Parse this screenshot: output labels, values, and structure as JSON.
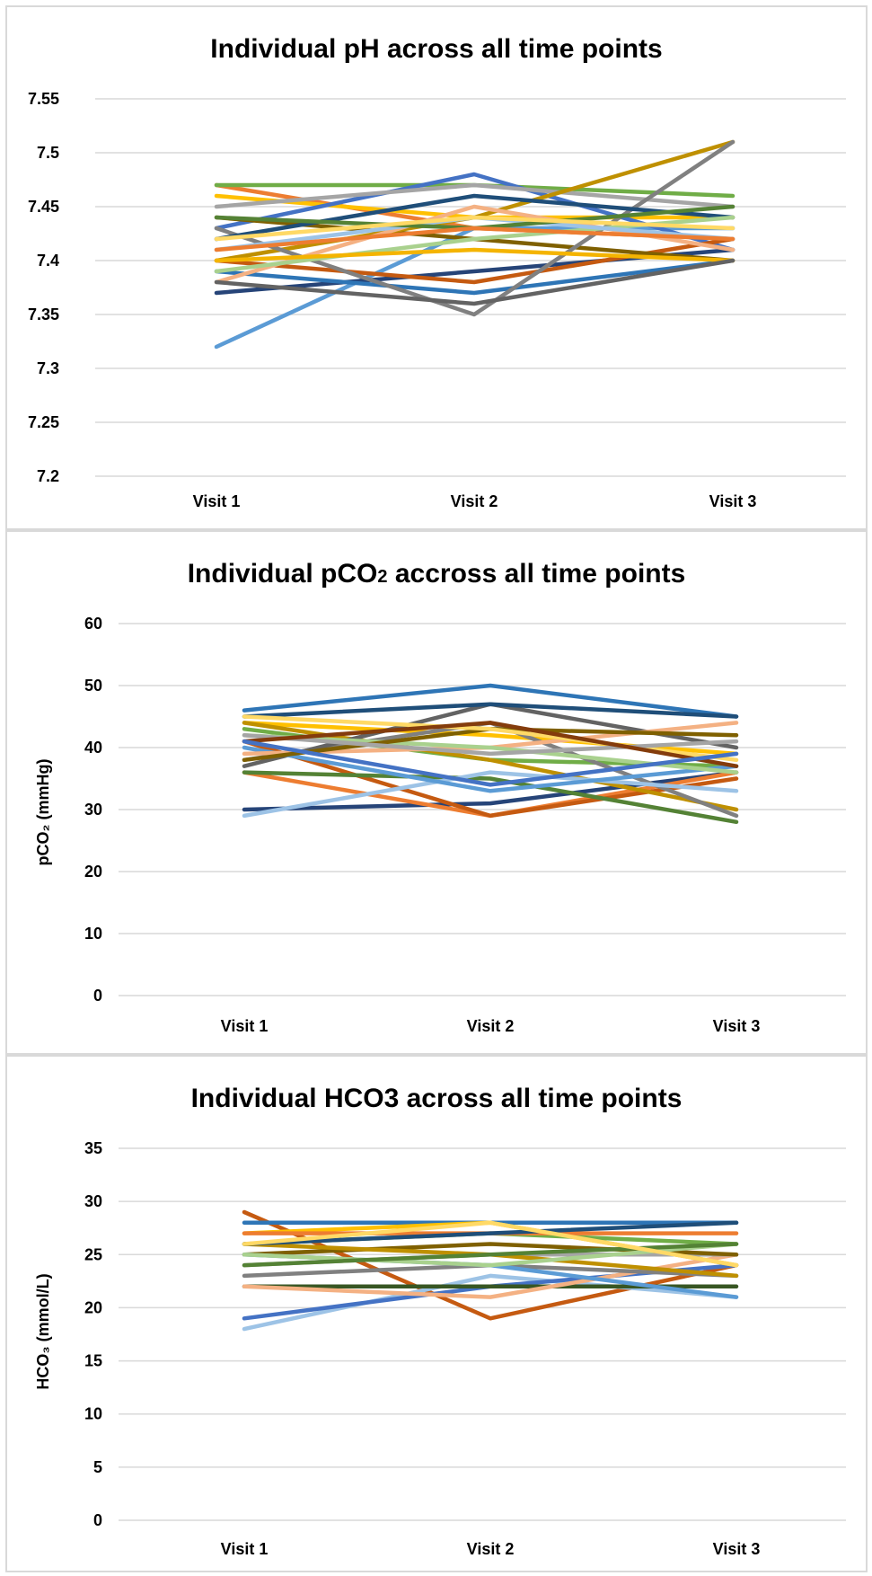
{
  "chart_data": [
    {
      "type": "line",
      "title": "Individual pH across all time points",
      "xlabel": "",
      "ylabel": "",
      "categories": [
        "Visit 1",
        "Visit 2",
        "Visit 3"
      ],
      "ylim": [
        7.2,
        7.55
      ],
      "yticks": [
        "7.2",
        "7.25",
        "7.3",
        "7.35",
        "7.4",
        "7.45",
        "7.5",
        "7.55"
      ],
      "ytick_values": [
        7.2,
        7.25,
        7.3,
        7.35,
        7.4,
        7.45,
        7.5,
        7.55
      ],
      "grid": true,
      "legend": "none",
      "series": [
        {
          "color": "#5B9BD5",
          "values": [
            7.32,
            7.43,
            7.43
          ]
        },
        {
          "color": "#264478",
          "values": [
            7.37,
            7.39,
            7.41
          ]
        },
        {
          "color": "#ED7D31",
          "values": [
            7.47,
            7.43,
            7.42
          ]
        },
        {
          "color": "#70AD47",
          "values": [
            7.47,
            7.47,
            7.46
          ]
        },
        {
          "color": "#FFC000",
          "values": [
            7.46,
            7.44,
            7.44
          ]
        },
        {
          "color": "#4472C4",
          "values": [
            7.43,
            7.48,
            7.41
          ]
        },
        {
          "color": "#A5A5A5",
          "values": [
            7.45,
            7.47,
            7.45
          ]
        },
        {
          "color": "#C55A11",
          "values": [
            7.4,
            7.38,
            7.42
          ]
        },
        {
          "color": "#2E75B6",
          "values": [
            7.39,
            7.37,
            7.4
          ]
        },
        {
          "color": "#7F6000",
          "values": [
            7.44,
            7.42,
            7.4
          ]
        },
        {
          "color": "#BF9000",
          "values": [
            7.4,
            7.44,
            7.51
          ]
        },
        {
          "color": "#808080",
          "values": [
            7.43,
            7.35,
            7.51
          ]
        },
        {
          "color": "#1F4E79",
          "values": [
            7.42,
            7.46,
            7.44
          ]
        },
        {
          "color": "#F4B183",
          "values": [
            7.38,
            7.45,
            7.41
          ]
        },
        {
          "color": "#A9D18E",
          "values": [
            7.39,
            7.42,
            7.44
          ]
        },
        {
          "color": "#9DC3E6",
          "values": [
            7.41,
            7.44,
            7.42
          ]
        },
        {
          "color": "#548235",
          "values": [
            7.44,
            7.43,
            7.45
          ]
        },
        {
          "color": "#F4B400",
          "values": [
            7.4,
            7.41,
            7.4
          ]
        },
        {
          "color": "#636363",
          "values": [
            7.38,
            7.36,
            7.4
          ]
        },
        {
          "color": "#ED7D31",
          "values": [
            7.41,
            7.43,
            7.42
          ]
        },
        {
          "color": "#FFD966",
          "values": [
            7.42,
            7.44,
            7.43
          ]
        }
      ]
    },
    {
      "type": "line",
      "title": "Individual pCO2 accross all time points",
      "title_main": "Individual pCO",
      "title_sub": "2",
      "title_tail": " accross all time points",
      "xlabel": "",
      "ylabel": "pCO₂ (mmHg)",
      "categories": [
        "Visit 1",
        "Visit 2",
        "Visit 3"
      ],
      "ylim": [
        0,
        60
      ],
      "yticks": [
        "0",
        "10",
        "20",
        "30",
        "40",
        "50",
        "60"
      ],
      "ytick_values": [
        0,
        10,
        20,
        30,
        40,
        50,
        60
      ],
      "grid": true,
      "legend": "none",
      "series": [
        {
          "color": "#2E75B6",
          "values": [
            46,
            50,
            45
          ]
        },
        {
          "color": "#264478",
          "values": [
            30,
            31,
            36
          ]
        },
        {
          "color": "#ED7D31",
          "values": [
            36,
            29,
            36
          ]
        },
        {
          "color": "#C55A11",
          "values": [
            41,
            29,
            35
          ]
        },
        {
          "color": "#70AD47",
          "values": [
            43,
            38,
            37
          ]
        },
        {
          "color": "#548235",
          "values": [
            36,
            35,
            28
          ]
        },
        {
          "color": "#FFC000",
          "values": [
            44,
            42,
            39
          ]
        },
        {
          "color": "#BF9000",
          "values": [
            44,
            38,
            30
          ]
        },
        {
          "color": "#808080",
          "values": [
            38,
            44,
            29
          ]
        },
        {
          "color": "#636363",
          "values": [
            37,
            47,
            40
          ]
        },
        {
          "color": "#9DC3E6",
          "values": [
            29,
            36,
            33
          ]
        },
        {
          "color": "#5B9BD5",
          "values": [
            40,
            33,
            37
          ]
        },
        {
          "color": "#1F4E79",
          "values": [
            45,
            47,
            45
          ]
        },
        {
          "color": "#F4B183",
          "values": [
            39,
            40,
            44
          ]
        },
        {
          "color": "#A9D18E",
          "values": [
            42,
            40,
            36
          ]
        },
        {
          "color": "#7F6000",
          "values": [
            38,
            43,
            42
          ]
        },
        {
          "color": "#FFD966",
          "values": [
            45,
            43,
            38
          ]
        },
        {
          "color": "#A5A5A5",
          "values": [
            42,
            39,
            41
          ]
        },
        {
          "color": "#843C0C",
          "values": [
            41,
            44,
            37
          ]
        },
        {
          "color": "#4472C4",
          "values": [
            41,
            34,
            39
          ]
        }
      ]
    },
    {
      "type": "line",
      "title": "Individual HCO3 across all time points",
      "xlabel": "",
      "ylabel": "HCO₃ (mmol/L)",
      "categories": [
        "Visit 1",
        "Visit 2",
        "Visit 3"
      ],
      "ylim": [
        0,
        35
      ],
      "yticks": [
        "0",
        "5",
        "10",
        "15",
        "20",
        "25",
        "30",
        "35"
      ],
      "ytick_values": [
        0,
        5,
        10,
        15,
        20,
        25,
        30,
        35
      ],
      "grid": true,
      "legend": "none",
      "series": [
        {
          "color": "#C55A11",
          "values": [
            29,
            19,
            24
          ]
        },
        {
          "color": "#9DC3E6",
          "values": [
            18,
            23,
            21
          ]
        },
        {
          "color": "#4472C4",
          "values": [
            19,
            22,
            24
          ]
        },
        {
          "color": "#375623",
          "values": [
            22,
            22,
            22
          ]
        },
        {
          "color": "#2E75B6",
          "values": [
            28,
            28,
            28
          ]
        },
        {
          "color": "#FFC000",
          "values": [
            27,
            28,
            24
          ]
        },
        {
          "color": "#70AD47",
          "values": [
            26,
            27,
            26
          ]
        },
        {
          "color": "#F4B183",
          "values": [
            22,
            21,
            25
          ]
        },
        {
          "color": "#A5A5A5",
          "values": [
            24,
            25,
            25
          ]
        },
        {
          "color": "#808080",
          "values": [
            23,
            24,
            23
          ]
        },
        {
          "color": "#7F6000",
          "values": [
            25,
            26,
            25
          ]
        },
        {
          "color": "#BF9000",
          "values": [
            26,
            25,
            23
          ]
        },
        {
          "color": "#5B9BD5",
          "values": [
            25,
            24,
            21
          ]
        },
        {
          "color": "#ED7D31",
          "values": [
            27,
            27,
            27
          ]
        },
        {
          "color": "#A9D18E",
          "values": [
            25,
            24,
            26
          ]
        },
        {
          "color": "#1F4E79",
          "values": [
            26,
            27,
            28
          ]
        },
        {
          "color": "#548235",
          "values": [
            24,
            25,
            26
          ]
        },
        {
          "color": "#FFD966",
          "values": [
            26,
            28,
            24
          ]
        }
      ]
    }
  ]
}
